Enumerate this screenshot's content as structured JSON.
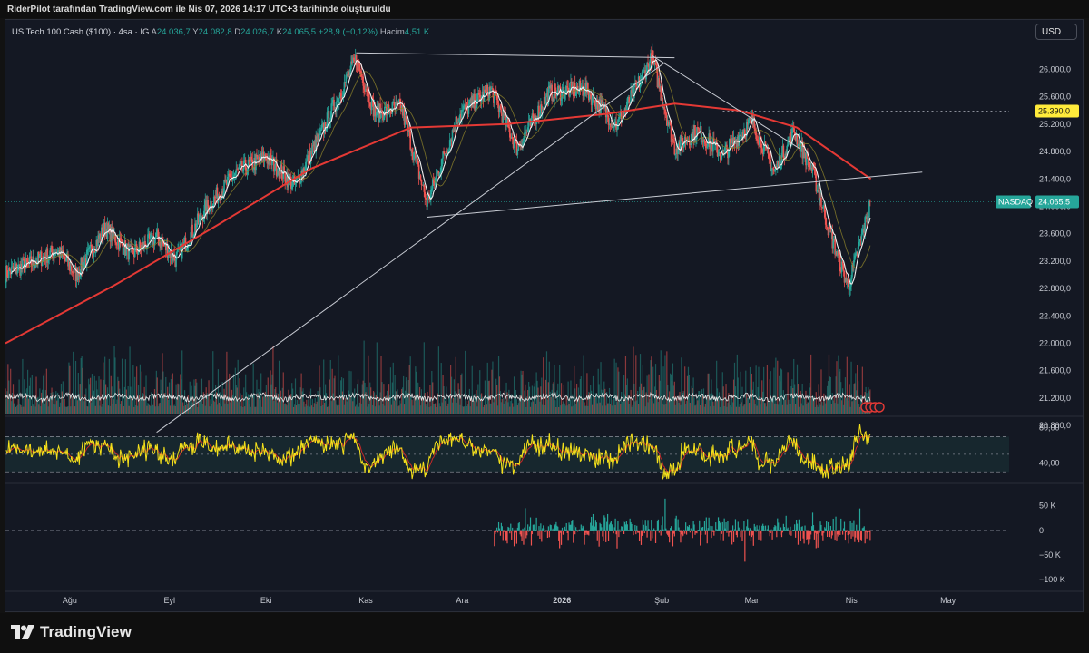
{
  "header": {
    "credit": "RiderPilot tarafından TradingView.com ile Nis 07, 2026 14:17 UTC+3 tarihinde oluşturuldu"
  },
  "legend": {
    "symbol": "US Tech 100 Cash ($100) · 4sa · IG",
    "o_label": "A",
    "o_value": "24.036,7",
    "h_label": "Y",
    "h_value": "24.082,8",
    "l_label": "D",
    "l_value": "24.026,7",
    "c_label": "K",
    "c_value": "24.065,5",
    "change": "+28,9 (+0,12%)",
    "volume_label": "Hacim",
    "volume_value": "4,51 K"
  },
  "currency_button": "USD",
  "footer": {
    "logo_text": "TradingView"
  },
  "colors": {
    "up": "#26a69a",
    "down": "#ef5350",
    "ma_long": "#e53935",
    "rsi_line": "#f5e11b",
    "rsi_signal": "#c62828",
    "price_label_bg": "#26a69a",
    "level_label_bg": "#ffeb3b",
    "background": "#141823"
  },
  "chart_data": [
    {
      "type": "candlestick",
      "panel": "price",
      "symbol_label": "NASDAQ",
      "last_price": 24065.5,
      "last_price_label": "24.065,5",
      "marked_level": 25390,
      "marked_level_label": "25.390,0",
      "y_ticks": [
        "26.000,0",
        "25.600,0",
        "25.200,0",
        "24.800,0",
        "24.400,0",
        "24.000,0",
        "23.600,0",
        "23.200,0",
        "22.800,0",
        "22.400,0",
        "22.000,0",
        "21.600,0",
        "21.200,0",
        "20.800,0"
      ],
      "y_tick_values": [
        26000,
        25600,
        25200,
        24800,
        24400,
        24000,
        23600,
        23200,
        22800,
        22400,
        22000,
        21600,
        21200,
        20800
      ],
      "ylim": [
        20650,
        26350
      ],
      "x_ticks": [
        "Ağu",
        "Eyl",
        "Eki",
        "Kas",
        "Ara",
        "2026",
        "Şub",
        "Mar",
        "Nis",
        "May"
      ],
      "xlim": [
        "2025-07-12",
        "2026-05-20"
      ],
      "x_tick_dates": [
        "2025-08-01",
        "2025-09-01",
        "2025-10-01",
        "2025-11-01",
        "2025-12-01",
        "2026-01-01",
        "2026-02-01",
        "2026-03-01",
        "2026-04-01",
        "2026-05-01"
      ],
      "price_path": [
        [
          "2025-07-12",
          23020
        ],
        [
          "2025-07-20",
          23170
        ],
        [
          "2025-07-28",
          23360
        ],
        [
          "2025-08-03",
          23000
        ],
        [
          "2025-08-12",
          23680
        ],
        [
          "2025-08-20",
          23300
        ],
        [
          "2025-08-28",
          23550
        ],
        [
          "2025-09-03",
          23220
        ],
        [
          "2025-09-12",
          23950
        ],
        [
          "2025-09-22",
          24500
        ],
        [
          "2025-10-01",
          24720
        ],
        [
          "2025-10-10",
          24300
        ],
        [
          "2025-10-18",
          25050
        ],
        [
          "2025-10-29",
          26150
        ],
        [
          "2025-11-04",
          25350
        ],
        [
          "2025-11-12",
          25450
        ],
        [
          "2025-11-20",
          24050
        ],
        [
          "2025-11-30",
          25350
        ],
        [
          "2025-12-10",
          25700
        ],
        [
          "2025-12-18",
          24850
        ],
        [
          "2025-12-28",
          25650
        ],
        [
          "2026-01-08",
          25720
        ],
        [
          "2026-01-18",
          25180
        ],
        [
          "2026-01-29",
          26170
        ],
        [
          "2026-02-05",
          24850
        ],
        [
          "2026-02-12",
          25100
        ],
        [
          "2026-02-20",
          24750
        ],
        [
          "2026-03-01",
          25250
        ],
        [
          "2026-03-08",
          24500
        ],
        [
          "2026-03-14",
          25100
        ],
        [
          "2026-03-20",
          24500
        ],
        [
          "2026-03-25",
          23650
        ],
        [
          "2026-03-31",
          22820
        ],
        [
          "2026-04-07",
          24065
        ]
      ],
      "moving_average_long": [
        [
          "2025-07-12",
          22000
        ],
        [
          "2025-08-15",
          22850
        ],
        [
          "2025-09-15",
          23700
        ],
        [
          "2025-10-15",
          24550
        ],
        [
          "2025-11-15",
          25150
        ],
        [
          "2025-12-15",
          25200
        ],
        [
          "2026-01-15",
          25350
        ],
        [
          "2026-02-05",
          25500
        ],
        [
          "2026-02-25",
          25400
        ],
        [
          "2026-03-15",
          25150
        ],
        [
          "2026-04-07",
          24400
        ]
      ],
      "trendlines": [
        {
          "from": [
            "2025-08-28",
            20700
          ],
          "to": [
            "2026-02-02",
            26100
          ]
        },
        {
          "from": [
            "2025-10-29",
            26240
          ],
          "to": [
            "2026-02-05",
            26170
          ]
        },
        {
          "from": [
            "2026-01-29",
            26200
          ],
          "to": [
            "2026-03-16",
            24840
          ]
        },
        {
          "from": [
            "2025-11-20",
            23840
          ],
          "to": [
            "2026-04-23",
            24500
          ]
        }
      ]
    },
    {
      "type": "bar",
      "panel": "volume",
      "note_visible": "volume bars overlay on price panel"
    },
    {
      "type": "line",
      "panel": "rsi",
      "y_ticks": [
        "80,00",
        "40,00"
      ],
      "y_tick_values": [
        80,
        40
      ],
      "ylim": [
        20,
        90
      ],
      "bands": [
        30,
        50,
        70
      ],
      "series": []
    },
    {
      "type": "bar",
      "panel": "oscillator",
      "y_ticks": [
        "50 K",
        "0",
        "−50 K",
        "−100 K"
      ],
      "y_tick_values": [
        50000,
        0,
        -50000,
        -100000
      ],
      "ylim": [
        -120000,
        90000
      ],
      "start_date": "2025-12-11"
    }
  ]
}
